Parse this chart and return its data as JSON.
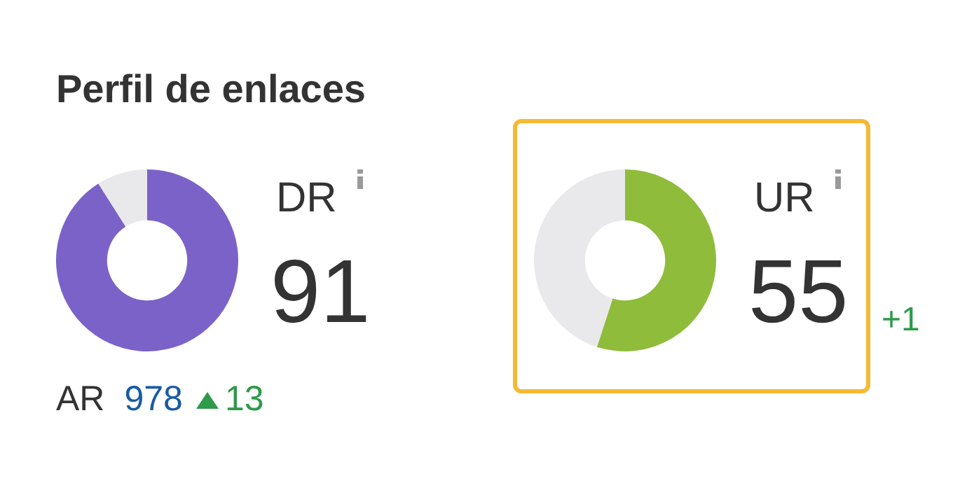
{
  "chart_data": [
    {
      "type": "other",
      "title": "Perfil de enlaces"
    },
    {
      "type": "donut",
      "title": "DR",
      "categories": [
        null,
        null
      ],
      "values": [
        91,
        9
      ],
      "colors": [
        "#7a62c9",
        "#e9e9ec"
      ],
      "value_labels": [
        "91",
        null
      ],
      "annotations": [
        "AR",
        "978",
        "13"
      ]
    },
    {
      "type": "donut",
      "title": "UR",
      "categories": [
        null,
        null
      ],
      "values": [
        55,
        45
      ],
      "colors": [
        "#8fbc3b",
        "#e9e9ec"
      ],
      "value_labels": [
        "55",
        null
      ],
      "annotations": [
        "+1"
      ]
    }
  ]
}
